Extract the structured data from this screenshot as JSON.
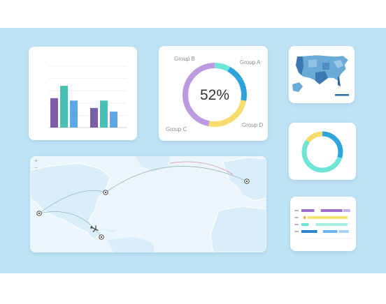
{
  "charts": {
    "bar": {
      "type": "bar",
      "groups": [
        {
          "colors": [
            "#7b5ea7",
            "#48c0b4",
            "#5aa9e6"
          ],
          "values": [
            1200,
            1700,
            1100
          ]
        },
        {
          "colors": [
            "#7b5ea7",
            "#48c0b4",
            "#5aa9e6"
          ],
          "values": [
            800,
            1100,
            650
          ]
        }
      ],
      "ylim": [
        0,
        2500
      ],
      "grid": true
    },
    "donut_groups": {
      "type": "pie",
      "center_label": "52%",
      "labels": [
        "Group A",
        "Group B",
        "Group C",
        "Group D"
      ],
      "values": [
        8,
        20,
        25,
        47
      ],
      "colors": [
        "#6ee5d6",
        "#2fa3dc",
        "#f7dd6d",
        "#bb9ae0"
      ]
    },
    "donut_small": {
      "type": "pie",
      "values": [
        30,
        55,
        15
      ],
      "colors": [
        "#2fa3dc",
        "#6ee5d6",
        "#f7dd6d"
      ]
    },
    "gantt": {
      "type": "bar",
      "rows": [
        {
          "segments": [
            {
              "start": 0,
              "len": 18,
              "color": "#9a6ec9"
            },
            {
              "start": 27,
              "len": 30,
              "color": "#9a6ec9"
            },
            {
              "start": 58,
              "len": 10,
              "color": "#c7b3e3"
            }
          ]
        },
        {
          "segments": [
            {
              "start": 3,
              "len": 3,
              "color": "#f2b134"
            },
            {
              "start": 9,
              "len": 55,
              "color": "#f7e26b"
            }
          ]
        },
        {
          "segments": [
            {
              "start": 0,
              "len": 10,
              "color": "#6ee5d6"
            },
            {
              "start": 20,
              "len": 44,
              "color": "#a9ece3"
            }
          ]
        },
        {
          "segments": [
            {
              "start": 0,
              "len": 22,
              "color": "#2f84d0"
            },
            {
              "start": 30,
              "len": 20,
              "color": "#6fb3e8"
            },
            {
              "start": 52,
              "len": 14,
              "color": "#a9d3f3"
            }
          ]
        }
      ]
    }
  },
  "map_card": {
    "zoom_in": "+",
    "zoom_out": "−"
  }
}
